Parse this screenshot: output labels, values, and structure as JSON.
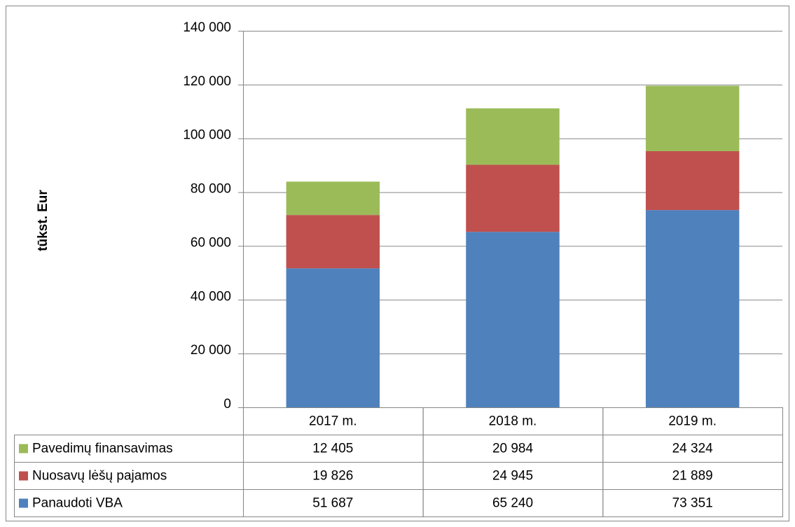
{
  "chart_data": {
    "type": "stacked_bar",
    "y_label": "tūkst. Eur",
    "categories": [
      "2017 m.",
      "2018 m.",
      "2019 m."
    ],
    "series": [
      {
        "name": "Panaudoti VBA",
        "color": "#4f81bd",
        "values": [
          51687,
          65240,
          73351
        ],
        "value_labels": [
          "51 687",
          "65 240",
          "73 351"
        ]
      },
      {
        "name": "Nuosavų lėšų pajamos",
        "color": "#c0504d",
        "values": [
          19826,
          24945,
          21889
        ],
        "value_labels": [
          "19 826",
          "24 945",
          "21 889"
        ]
      },
      {
        "name": "Pavedimų finansavimas",
        "color": "#9bbb59",
        "values": [
          12405,
          20984,
          24324
        ],
        "value_labels": [
          "12 405",
          "20 984",
          "24 324"
        ]
      }
    ],
    "ylim": [
      0,
      140000
    ],
    "yticks": [
      0,
      {
        "value": 20000,
        "label": "20 000"
      },
      {
        "value": 40000,
        "label": "40 000"
      },
      {
        "value": 60000,
        "label": "60 000"
      },
      {
        "value": 80000,
        "label": "80 000"
      },
      {
        "value": 100000,
        "label": "100 000"
      },
      {
        "value": 120000,
        "label": "120 000"
      },
      {
        "value": 140000,
        "label": "140 000"
      }
    ],
    "grid": true,
    "legend": "table"
  }
}
